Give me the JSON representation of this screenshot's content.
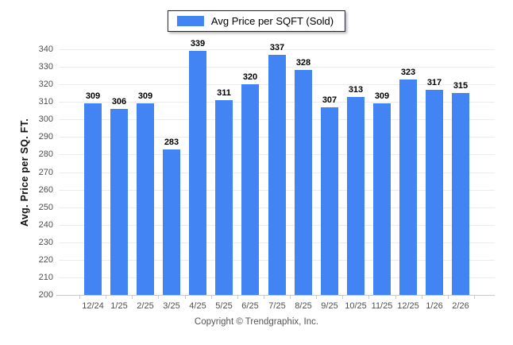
{
  "legend": {
    "label": "Avg Price per SQFT (Sold)"
  },
  "colors": {
    "bar": "#4284f4",
    "grid": "#ececec",
    "axis_line": "#c9c9c9",
    "tick_label": "#4f4f4f",
    "value_label": "#000000",
    "legend_border": "#23233f",
    "footer_text": "#555555"
  },
  "footer": {
    "text": "Copyright © Trendgraphix, Inc."
  },
  "chart_data": {
    "type": "bar",
    "categories": [
      "12/24",
      "1/25",
      "2/25",
      "3/25",
      "4/25",
      "5/25",
      "6/25",
      "7/25",
      "8/25",
      "9/25",
      "10/25",
      "11/25",
      "12/25",
      "1/26",
      "2/26"
    ],
    "values": [
      309,
      306,
      309,
      283,
      339,
      311,
      320,
      337,
      328,
      307,
      313,
      309,
      323,
      317,
      315
    ],
    "series_name": "Avg Price per SQFT (Sold)",
    "title": "",
    "xlabel": "",
    "ylabel": "Avg. Price per SQ. FT.",
    "ylim": [
      200,
      340
    ],
    "ytick_step": 10,
    "grid": true,
    "data_labels": true,
    "legend_position": "top"
  }
}
